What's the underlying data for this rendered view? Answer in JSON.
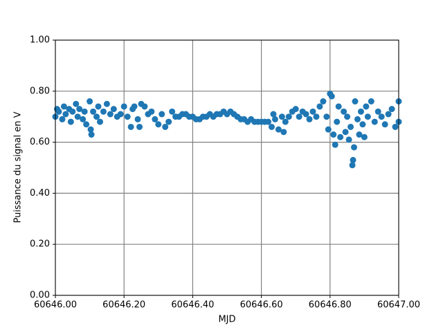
{
  "chart_data": {
    "type": "scatter",
    "xlabel": "MJD",
    "ylabel": "Puissance du signal en V",
    "color": "#1f77b4",
    "grid": true,
    "xlim": [
      60646.0,
      60647.0
    ],
    "ylim": [
      0.0,
      1.0
    ],
    "xticks": [
      {
        "value": 60646.0,
        "label": "60646.00"
      },
      {
        "value": 60646.2,
        "label": "60646.20"
      },
      {
        "value": 60646.4,
        "label": "60646.40"
      },
      {
        "value": 60646.6,
        "label": "60646.60"
      },
      {
        "value": 60646.8,
        "label": "60646.80"
      },
      {
        "value": 60647.0,
        "label": "60647.00"
      }
    ],
    "yticks": [
      {
        "value": 0.0,
        "label": "0.00"
      },
      {
        "value": 0.2,
        "label": "0.20"
      },
      {
        "value": 0.4,
        "label": "0.40"
      },
      {
        "value": 0.6,
        "label": "0.60"
      },
      {
        "value": 0.8,
        "label": "0.80"
      },
      {
        "value": 1.0,
        "label": "1.00"
      }
    ],
    "x": [
      60646.0,
      60646.005,
      60646.01,
      60646.02,
      60646.025,
      60646.03,
      60646.04,
      60646.045,
      60646.05,
      60646.06,
      60646.065,
      60646.07,
      60646.08,
      60646.085,
      60646.09,
      60646.1,
      60646.103,
      60646.105,
      60646.11,
      60646.12,
      60646.125,
      60646.13,
      60646.14,
      60646.15,
      60646.16,
      60646.17,
      60646.18,
      60646.19,
      60646.2,
      60646.21,
      60646.22,
      60646.225,
      60646.23,
      60646.24,
      60646.245,
      60646.25,
      60646.26,
      60646.27,
      60646.28,
      60646.29,
      60646.3,
      60646.31,
      60646.32,
      60646.33,
      60646.34,
      60646.35,
      60646.36,
      60646.37,
      60646.38,
      60646.39,
      60646.4,
      60646.41,
      60646.42,
      60646.43,
      60646.44,
      60646.45,
      60646.46,
      60646.47,
      60646.48,
      60646.49,
      60646.5,
      60646.51,
      60646.52,
      60646.53,
      60646.54,
      60646.55,
      60646.56,
      60646.57,
      60646.58,
      60646.59,
      60646.6,
      60646.61,
      60646.62,
      60646.63,
      60646.635,
      60646.64,
      60646.65,
      60646.66,
      60646.665,
      60646.67,
      60646.68,
      60646.69,
      60646.7,
      60646.71,
      60646.72,
      60646.73,
      60646.74,
      60646.75,
      60646.76,
      60646.77,
      60646.78,
      60646.79,
      60646.795,
      60646.8,
      60646.805,
      60646.81,
      60646.815,
      60646.82,
      60646.825,
      60646.83,
      60646.84,
      60646.845,
      60646.85,
      60646.855,
      60646.86,
      60646.865,
      60646.867,
      60646.87,
      60646.873,
      60646.88,
      60646.885,
      60646.89,
      60646.895,
      60646.9,
      60646.905,
      60646.91,
      60646.92,
      60646.93,
      60646.94,
      60646.95,
      60646.96,
      60646.97,
      60646.98,
      60646.99,
      60647.0,
      60647.0
    ],
    "values": [
      0.7,
      0.73,
      0.72,
      0.69,
      0.74,
      0.71,
      0.73,
      0.68,
      0.72,
      0.75,
      0.7,
      0.73,
      0.69,
      0.72,
      0.67,
      0.76,
      0.65,
      0.63,
      0.72,
      0.7,
      0.74,
      0.68,
      0.72,
      0.75,
      0.71,
      0.73,
      0.7,
      0.71,
      0.74,
      0.7,
      0.66,
      0.73,
      0.74,
      0.69,
      0.66,
      0.75,
      0.74,
      0.71,
      0.72,
      0.69,
      0.67,
      0.71,
      0.66,
      0.68,
      0.72,
      0.7,
      0.7,
      0.71,
      0.71,
      0.7,
      0.7,
      0.69,
      0.69,
      0.7,
      0.7,
      0.71,
      0.7,
      0.71,
      0.71,
      0.72,
      0.71,
      0.72,
      0.71,
      0.7,
      0.69,
      0.69,
      0.68,
      0.69,
      0.68,
      0.68,
      0.68,
      0.68,
      0.68,
      0.66,
      0.71,
      0.69,
      0.65,
      0.7,
      0.64,
      0.68,
      0.7,
      0.72,
      0.73,
      0.7,
      0.72,
      0.71,
      0.69,
      0.72,
      0.7,
      0.74,
      0.76,
      0.7,
      0.65,
      0.79,
      0.78,
      0.63,
      0.59,
      0.68,
      0.74,
      0.62,
      0.72,
      0.64,
      0.7,
      0.61,
      0.66,
      0.51,
      0.53,
      0.58,
      0.76,
      0.69,
      0.63,
      0.72,
      0.67,
      0.62,
      0.74,
      0.7,
      0.76,
      0.68,
      0.72,
      0.7,
      0.67,
      0.71,
      0.73,
      0.66,
      0.76,
      0.68
    ]
  }
}
